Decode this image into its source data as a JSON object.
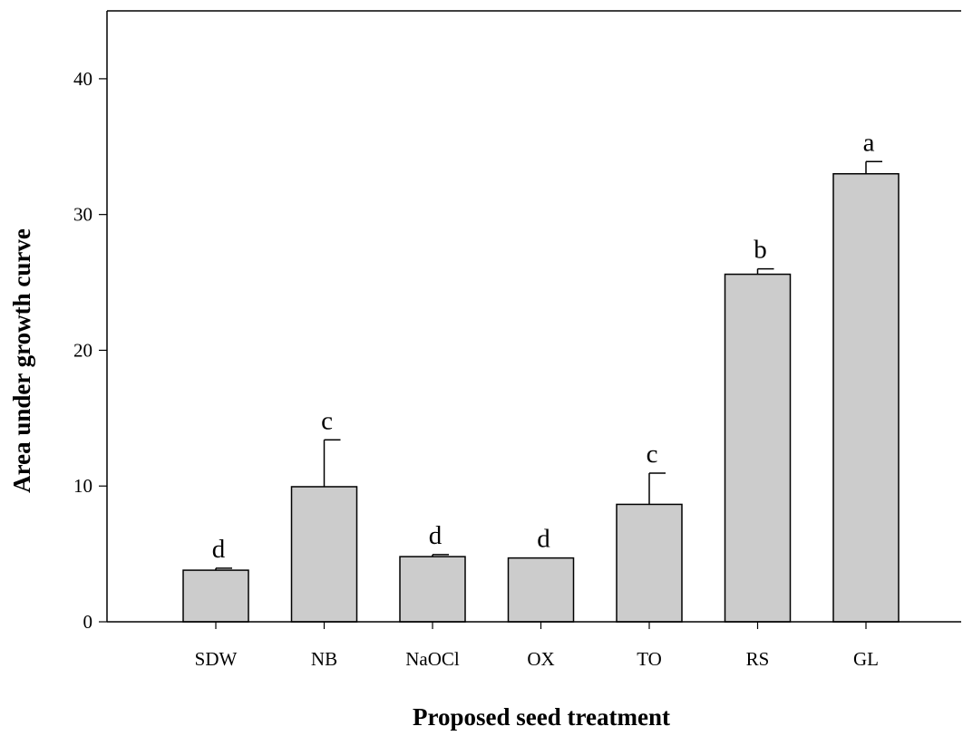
{
  "chart_data": {
    "type": "bar",
    "title": "",
    "xlabel": "Proposed seed treatment",
    "ylabel": "Area under growth curve",
    "ylim": [
      0,
      45
    ],
    "yticks": [
      0,
      10,
      20,
      30,
      40
    ],
    "ytick_labels": [
      "0",
      "10",
      "20",
      "30",
      "40"
    ],
    "categories": [
      "SDW",
      "NB",
      "NaOCl",
      "OX",
      "TO",
      "RS",
      "GL"
    ],
    "values": [
      3.8,
      9.95,
      4.8,
      4.7,
      8.65,
      25.6,
      33.0
    ],
    "errors": [
      0.15,
      3.45,
      0.15,
      0.0,
      2.3,
      0.4,
      0.9
    ],
    "significance_letters": [
      "d",
      "c",
      "d",
      "d",
      "c",
      "b",
      "a"
    ],
    "bar_color": "#cccccc",
    "grid": false,
    "legend": "none"
  }
}
